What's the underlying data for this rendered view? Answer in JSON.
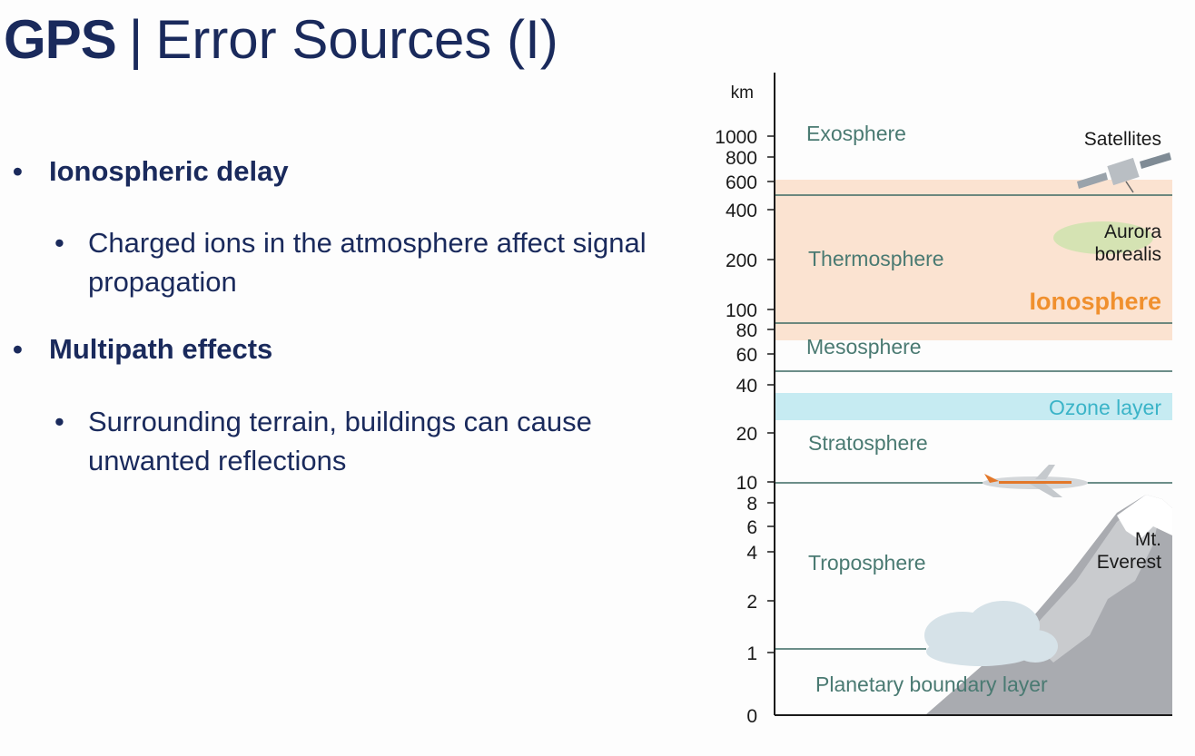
{
  "title": {
    "bold": "GPS",
    "separator": "|",
    "rest": "Error Sources (I)"
  },
  "bullets": [
    {
      "label": "Ionospheric delay",
      "sub": [
        "Charged ions in the atmosphere affect signal propagation"
      ]
    },
    {
      "label": "Multipath effects",
      "sub": [
        "Surrounding terrain, buildings can cause unwanted reflections"
      ]
    }
  ],
  "diagram": {
    "unit": "km",
    "altitude_ticks": [
      "1000",
      "800",
      "600",
      "400",
      "200",
      "100",
      "80",
      "60",
      "40",
      "20",
      "10",
      "8",
      "6",
      "4",
      "2",
      "1",
      "0"
    ],
    "layers": {
      "exosphere": "Exosphere",
      "thermosphere": "Thermosphere",
      "mesosphere": "Mesosphere",
      "stratosphere": "Stratosphere",
      "troposphere": "Troposphere",
      "boundary": "Planetary boundary layer"
    },
    "bands": {
      "ionosphere": "Ionosphere",
      "ozone": "Ozone layer"
    },
    "objects": {
      "satellites": "Satellites",
      "aurora_line1": "Aurora",
      "aurora_line2": "borealis",
      "everest_line1": "Mt.",
      "everest_line2": "Everest"
    },
    "colors": {
      "ionosphere_band": "#fbe3d1",
      "ionosphere_text": "#f0902e",
      "ozone_band": "#c6ebf2",
      "ozone_text": "#3bb4c8",
      "layer_text": "#4a7a72",
      "boundary_line": "#3d6a63"
    }
  }
}
